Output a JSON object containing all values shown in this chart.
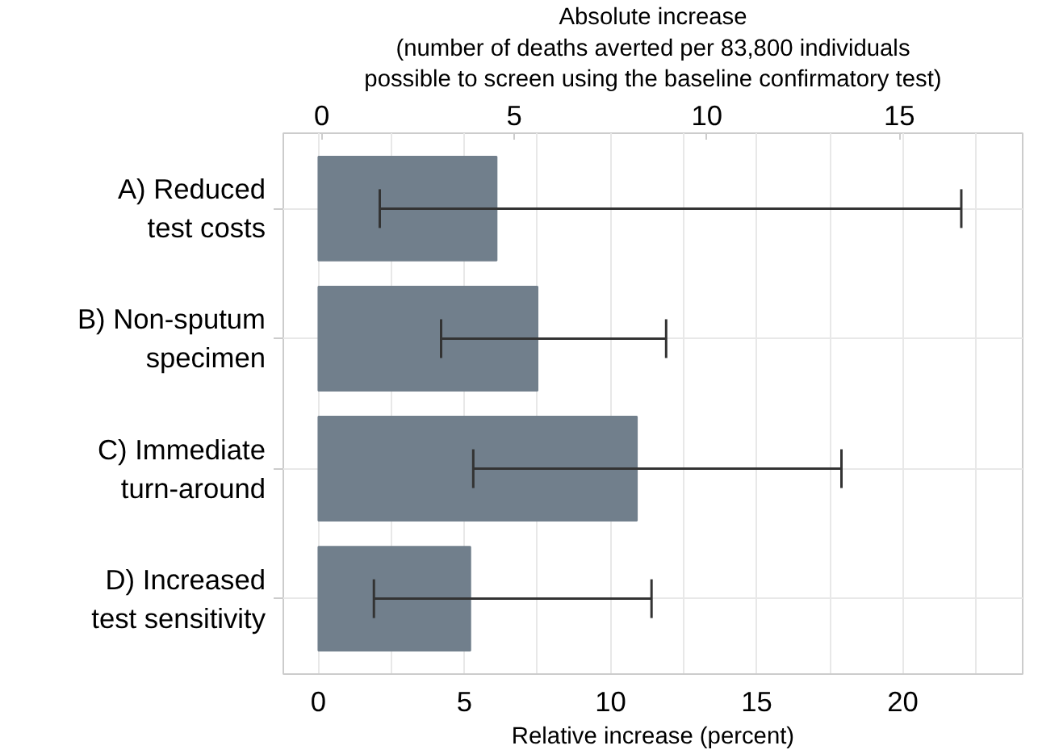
{
  "chart_data": {
    "type": "bar",
    "orientation": "horizontal",
    "categories": [
      "A) Reduced\ntest costs",
      "B) Non-sputum\nspecimen",
      "C) Immediate\nturn-around",
      "D) Increased\ntest sensitivity"
    ],
    "values": [
      6.1,
      7.5,
      10.9,
      5.2
    ],
    "errors": [
      [
        2.1,
        22.0
      ],
      [
        4.2,
        11.9
      ],
      [
        5.3,
        17.9
      ],
      [
        1.9,
        11.4
      ]
    ],
    "color": "#717f8c",
    "xlabel": "Relative increase (percent)",
    "xlim": [
      -1.2,
      24.1
    ],
    "xticks": [
      0,
      {
        "value": 2.5,
        "label": null
      },
      5,
      {
        "value": 7.5,
        "label": null
      },
      10,
      {
        "value": 12.5,
        "label": null
      },
      15,
      {
        "value": 17.5,
        "label": null
      },
      20,
      {
        "value": 22.5,
        "label": null
      }
    ],
    "x2label": "Absolute increase\n(number of deaths averted per 83,800 individuals\npossible to screen using the baseline confirmatory test)",
    "x2lim": [
      -1.0,
      18.2
    ],
    "x2ticks": [
      0,
      5,
      10,
      15
    ],
    "grid": true
  }
}
